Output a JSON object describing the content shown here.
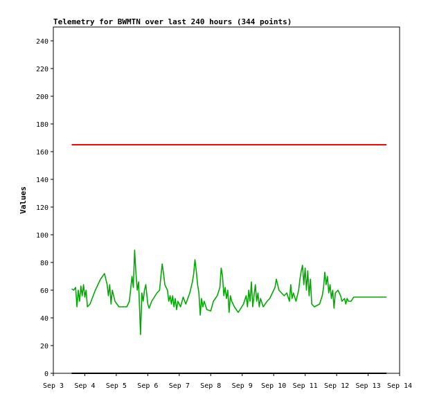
{
  "chart_data": {
    "type": "line",
    "title": "Telemetry for BWMTN over last 240 hours (344 points)",
    "xlabel": "",
    "ylabel": "Values",
    "xlim": [
      "Sep 3",
      "Sep 14"
    ],
    "ylim": [
      0,
      250
    ],
    "x_ticks": [
      "Sep 3",
      "Sep 4",
      "Sep 5",
      "Sep 6",
      "Sep 7",
      "Sep 8",
      "Sep 9",
      "Sep 10",
      "Sep 11",
      "Sep 12",
      "Sep 13",
      "Sep 14"
    ],
    "y_ticks": [
      0,
      20,
      40,
      60,
      80,
      100,
      120,
      140,
      160,
      180,
      200,
      220,
      240
    ],
    "grid": false,
    "series": [
      {
        "color": "#ff0000",
        "points": [
          [
            "Sep 3 14:00",
            165
          ],
          [
            "Sep 13 14:00",
            165
          ]
        ]
      },
      {
        "color": "#000000",
        "points": [
          [
            "Sep 3 14:00",
            0
          ],
          [
            "Sep 13 14:00",
            0
          ]
        ]
      },
      {
        "color": "#00aa00",
        "points": [
          [
            "Sep 3 14:00",
            61
          ],
          [
            "Sep 3 15:30",
            60
          ],
          [
            "Sep 3 17:00",
            62
          ],
          [
            "Sep 3 18:00",
            48
          ],
          [
            "Sep 3 19:00",
            60
          ],
          [
            "Sep 3 20:00",
            52
          ],
          [
            "Sep 3 21:00",
            63
          ],
          [
            "Sep 3 22:00",
            56
          ],
          [
            "Sep 3 23:00",
            64
          ],
          [
            "Sep 4 00:00",
            55
          ],
          [
            "Sep 4 01:00",
            60
          ],
          [
            "Sep 4 02:00",
            48
          ],
          [
            "Sep 4 04:00",
            50
          ],
          [
            "Sep 4 08:00",
            60
          ],
          [
            "Sep 4 12:00",
            68
          ],
          [
            "Sep 4 15:00",
            72
          ],
          [
            "Sep 4 17:00",
            64
          ],
          [
            "Sep 4 18:00",
            56
          ],
          [
            "Sep 4 19:00",
            64
          ],
          [
            "Sep 4 20:00",
            50
          ],
          [
            "Sep 4 21:00",
            60
          ],
          [
            "Sep 4 23:00",
            52
          ],
          [
            "Sep 5 02:00",
            48
          ],
          [
            "Sep 5 08:00",
            48
          ],
          [
            "Sep 5 10:00",
            52
          ],
          [
            "Sep 5 12:00",
            70
          ],
          [
            "Sep 5 13:00",
            62
          ],
          [
            "Sep 5 14:00",
            89
          ],
          [
            "Sep 5 15:00",
            72
          ],
          [
            "Sep 5 16:00",
            60
          ],
          [
            "Sep 5 17:00",
            66
          ],
          [
            "Sep 5 18:00",
            40
          ],
          [
            "Sep 5 18:30",
            28
          ],
          [
            "Sep 5 19:30",
            58
          ],
          [
            "Sep 5 20:30",
            52
          ],
          [
            "Sep 5 21:30",
            60
          ],
          [
            "Sep 5 22:30",
            64
          ],
          [
            "Sep 6 00:00",
            50
          ],
          [
            "Sep 6 01:00",
            47
          ],
          [
            "Sep 6 03:00",
            52
          ],
          [
            "Sep 6 07:00",
            58
          ],
          [
            "Sep 6 09:00",
            60
          ],
          [
            "Sep 6 10:00",
            70
          ],
          [
            "Sep 6 11:00",
            79
          ],
          [
            "Sep 6 12:00",
            72
          ],
          [
            "Sep 6 13:00",
            64
          ],
          [
            "Sep 6 15:00",
            60
          ],
          [
            "Sep 6 16:00",
            52
          ],
          [
            "Sep 6 17:00",
            56
          ],
          [
            "Sep 6 18:00",
            50
          ],
          [
            "Sep 6 19:00",
            56
          ],
          [
            "Sep 6 20:00",
            48
          ],
          [
            "Sep 6 21:00",
            54
          ],
          [
            "Sep 6 22:00",
            46
          ],
          [
            "Sep 6 23:00",
            52
          ],
          [
            "Sep 7 01:00",
            48
          ],
          [
            "Sep 7 03:00",
            55
          ],
          [
            "Sep 7 05:00",
            50
          ],
          [
            "Sep 7 08:00",
            58
          ],
          [
            "Sep 7 10:00",
            66
          ],
          [
            "Sep 7 11:00",
            72
          ],
          [
            "Sep 7 12:00",
            82
          ],
          [
            "Sep 7 13:00",
            74
          ],
          [
            "Sep 7 14:00",
            64
          ],
          [
            "Sep 7 15:00",
            58
          ],
          [
            "Sep 7 16:00",
            42
          ],
          [
            "Sep 7 17:00",
            54
          ],
          [
            "Sep 7 18:00",
            48
          ],
          [
            "Sep 7 19:00",
            52
          ],
          [
            "Sep 7 21:00",
            46
          ],
          [
            "Sep 8 00:00",
            45
          ],
          [
            "Sep 8 02:00",
            52
          ],
          [
            "Sep 8 05:00",
            56
          ],
          [
            "Sep 8 07:00",
            62
          ],
          [
            "Sep 8 08:00",
            76
          ],
          [
            "Sep 8 09:00",
            70
          ],
          [
            "Sep 8 10:00",
            56
          ],
          [
            "Sep 8 11:00",
            62
          ],
          [
            "Sep 8 12:00",
            54
          ],
          [
            "Sep 8 13:00",
            60
          ],
          [
            "Sep 8 14:00",
            44
          ],
          [
            "Sep 8 15:00",
            56
          ],
          [
            "Sep 8 16:00",
            52
          ],
          [
            "Sep 8 18:00",
            48
          ],
          [
            "Sep 8 21:00",
            44
          ],
          [
            "Sep 9 01:00",
            50
          ],
          [
            "Sep 9 03:00",
            56
          ],
          [
            "Sep 9 04:00",
            48
          ],
          [
            "Sep 9 05:00",
            60
          ],
          [
            "Sep 9 06:00",
            52
          ],
          [
            "Sep 9 07:00",
            66
          ],
          [
            "Sep 9 08:00",
            48
          ],
          [
            "Sep 9 09:00",
            56
          ],
          [
            "Sep 9 10:00",
            64
          ],
          [
            "Sep 9 11:00",
            52
          ],
          [
            "Sep 9 12:00",
            58
          ],
          [
            "Sep 9 13:00",
            48
          ],
          [
            "Sep 9 14:00",
            54
          ],
          [
            "Sep 9 16:00",
            48
          ],
          [
            "Sep 9 19:00",
            52
          ],
          [
            "Sep 9 21:00",
            54
          ],
          [
            "Sep 9 23:00",
            58
          ],
          [
            "Sep 10 01:00",
            62
          ],
          [
            "Sep 10 02:00",
            68
          ],
          [
            "Sep 10 04:00",
            60
          ],
          [
            "Sep 10 06:00",
            58
          ],
          [
            "Sep 10 08:00",
            56
          ],
          [
            "Sep 10 10:00",
            58
          ],
          [
            "Sep 10 12:00",
            52
          ],
          [
            "Sep 10 13:00",
            64
          ],
          [
            "Sep 10 14:00",
            54
          ],
          [
            "Sep 10 15:00",
            58
          ],
          [
            "Sep 10 17:00",
            52
          ],
          [
            "Sep 10 19:00",
            60
          ],
          [
            "Sep 10 20:00",
            68
          ],
          [
            "Sep 10 21:00",
            74
          ],
          [
            "Sep 10 22:00",
            78
          ],
          [
            "Sep 10 23:00",
            64
          ],
          [
            "Sep 11 00:00",
            76
          ],
          [
            "Sep 11 01:00",
            60
          ],
          [
            "Sep 11 02:00",
            74
          ],
          [
            "Sep 11 03:00",
            56
          ],
          [
            "Sep 11 04:00",
            68
          ],
          [
            "Sep 11 05:00",
            50
          ],
          [
            "Sep 11 07:00",
            48
          ],
          [
            "Sep 11 11:00",
            50
          ],
          [
            "Sep 11 13:00",
            56
          ],
          [
            "Sep 11 14:00",
            62
          ],
          [
            "Sep 11 15:00",
            73
          ],
          [
            "Sep 11 16:00",
            64
          ],
          [
            "Sep 11 17:00",
            70
          ],
          [
            "Sep 11 18:00",
            58
          ],
          [
            "Sep 11 19:00",
            64
          ],
          [
            "Sep 11 20:00",
            54
          ],
          [
            "Sep 11 21:00",
            60
          ],
          [
            "Sep 11 22:00",
            47
          ],
          [
            "Sep 11 23:00",
            58
          ],
          [
            "Sep 12 01:00",
            60
          ],
          [
            "Sep 12 03:00",
            56
          ],
          [
            "Sep 12 04:00",
            52
          ],
          [
            "Sep 12 06:00",
            54
          ],
          [
            "Sep 12 07:00",
            50
          ],
          [
            "Sep 12 08:00",
            54
          ],
          [
            "Sep 12 09:00",
            52
          ],
          [
            "Sep 12 11:00",
            52
          ],
          [
            "Sep 12 13:00",
            55
          ],
          [
            "Sep 13 14:00",
            55
          ]
        ]
      }
    ]
  }
}
